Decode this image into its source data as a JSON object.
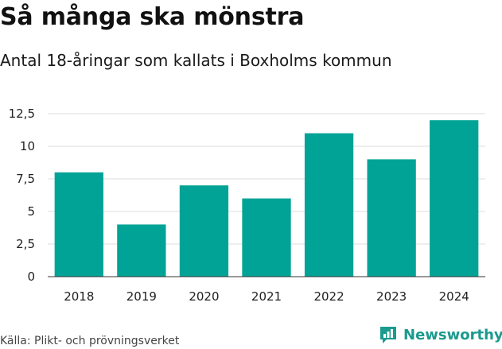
{
  "title": "Så många ska mönstra",
  "subtitle": "Antal 18-åringar som kallats i Boxholms kommun",
  "source": "Källa: Plikt- och prövningsverket",
  "logo": {
    "text": "Newsworthy",
    "icon": "newsworthy-logo-icon",
    "color": "#1b9a8e"
  },
  "chart_data": {
    "type": "bar",
    "categories": [
      "2018",
      "2019",
      "2020",
      "2021",
      "2022",
      "2023",
      "2024"
    ],
    "values": [
      8,
      4,
      7,
      6,
      11,
      9,
      12
    ],
    "title": "",
    "xlabel": "",
    "ylabel": "",
    "ylim": [
      0,
      12.5
    ],
    "yticks": [
      0,
      2.5,
      5,
      7.5,
      10,
      12.5
    ],
    "ytick_labels": [
      "0",
      "2,5",
      "5",
      "7,5",
      "10",
      "12,5"
    ],
    "grid": true,
    "legend": "none",
    "bar_color": "#00a396"
  }
}
